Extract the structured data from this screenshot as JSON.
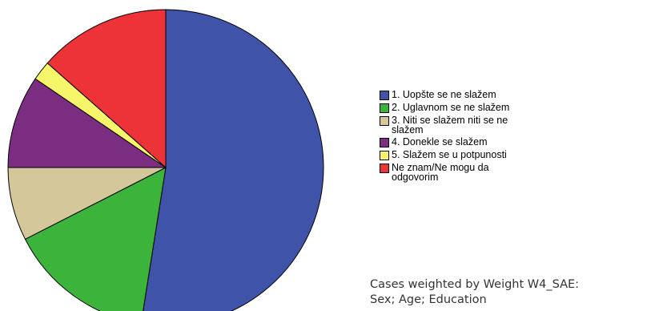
{
  "chart_data": {
    "type": "pie",
    "slices": [
      {
        "label": "1. Uopšte se ne slažem",
        "value": 52.5,
        "color": "#3f54a8"
      },
      {
        "label": "2. Uglavnom se ne slažem",
        "value": 15.0,
        "color": "#3cb43c"
      },
      {
        "label": "3. Niti se slažem niti se ne\nslažem",
        "value": 7.5,
        "color": "#d4c89a"
      },
      {
        "label": "4. Donekle se slažem",
        "value": 9.5,
        "color": "#7b2d82"
      },
      {
        "label": "5. Slažem se u potpunosti",
        "value": 2.0,
        "color": "#f7f56a"
      },
      {
        "label": "Ne znam/Ne mogu da\nodgovorim",
        "value": 13.5,
        "color": "#ee3338"
      }
    ],
    "legend_position": "right"
  },
  "note": {
    "line1": "Cases weighted by Weight W4_SAE:",
    "line2": "Sex; Age; Education"
  }
}
